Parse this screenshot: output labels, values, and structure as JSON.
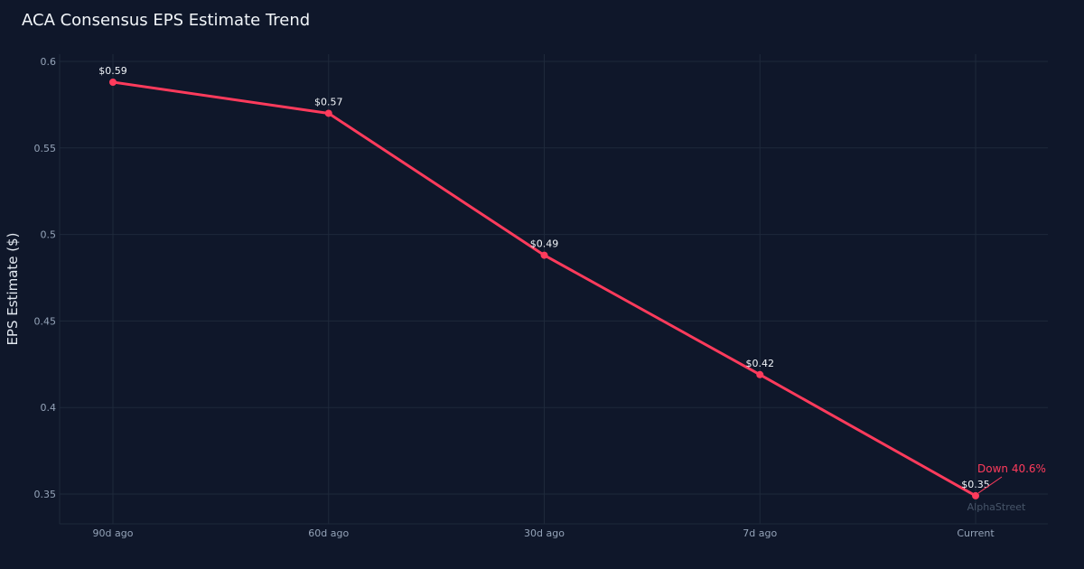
{
  "chart_data": {
    "type": "line",
    "title": "ACA Consensus EPS Estimate Trend",
    "xlabel": "",
    "ylabel": "EPS Estimate ($)",
    "categories": [
      "90d ago",
      "60d ago",
      "30d ago",
      "7d ago",
      "Current"
    ],
    "values": [
      0.588,
      0.57,
      0.488,
      0.419,
      0.349
    ],
    "data_labels": [
      "$0.59",
      "$0.57",
      "$0.49",
      "$0.42",
      "$0.35"
    ],
    "yticks": [
      0.35,
      0.4,
      0.45,
      0.5,
      0.55,
      0.6
    ],
    "ytick_labels": [
      "0.35",
      "0.4",
      "0.45",
      "0.5",
      "0.55",
      "0.6"
    ],
    "ylim": [
      0.333,
      0.604
    ],
    "grid": true,
    "annotation": "Down 40.6%",
    "watermark": "AlphaStreet",
    "colors": {
      "line": "#ff3b5c",
      "background": "#0f172a",
      "grid": "#1e293b",
      "tick": "#94a3b8"
    }
  }
}
